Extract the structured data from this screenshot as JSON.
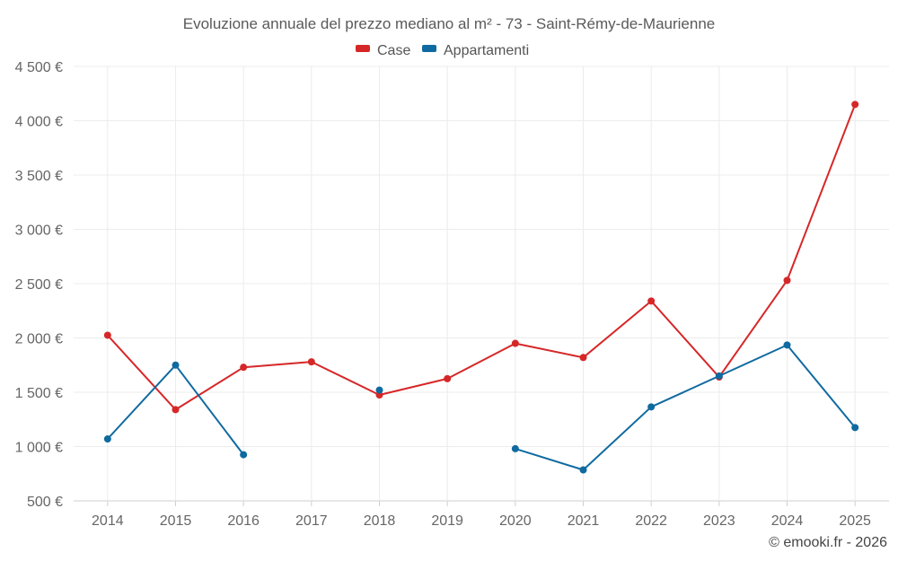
{
  "chart_data": {
    "type": "line",
    "title": "Evoluzione annuale del prezzo mediano al m² - 73 - Saint-Rémy-de-Maurienne",
    "categories": [
      "2014",
      "2015",
      "2016",
      "2017",
      "2018",
      "2019",
      "2020",
      "2021",
      "2022",
      "2023",
      "2024",
      "2025"
    ],
    "ylim": [
      500,
      4500
    ],
    "yticks": [
      500,
      1000,
      1500,
      2000,
      2500,
      3000,
      3500,
      4000,
      4500
    ],
    "ytick_labels": [
      "500 €",
      "1 000 €",
      "1 500 €",
      "2 000 €",
      "2 500 €",
      "3 000 €",
      "3 500 €",
      "4 000 €",
      "4 500 €"
    ],
    "xlabel": "",
    "ylabel": "",
    "legend_position": "top-center",
    "grid": true,
    "series": [
      {
        "name": "Case",
        "color": "#d62728",
        "values": [
          2025,
          1340,
          1730,
          1780,
          1475,
          1625,
          1950,
          1820,
          2340,
          1640,
          2530,
          4150
        ]
      },
      {
        "name": "Appartamenti",
        "color": "#0f6aa0",
        "values": [
          1070,
          1750,
          925,
          null,
          1520,
          null,
          980,
          785,
          1365,
          1650,
          1935,
          1175
        ]
      }
    ]
  },
  "credit": "© emooki.fr - 2026"
}
